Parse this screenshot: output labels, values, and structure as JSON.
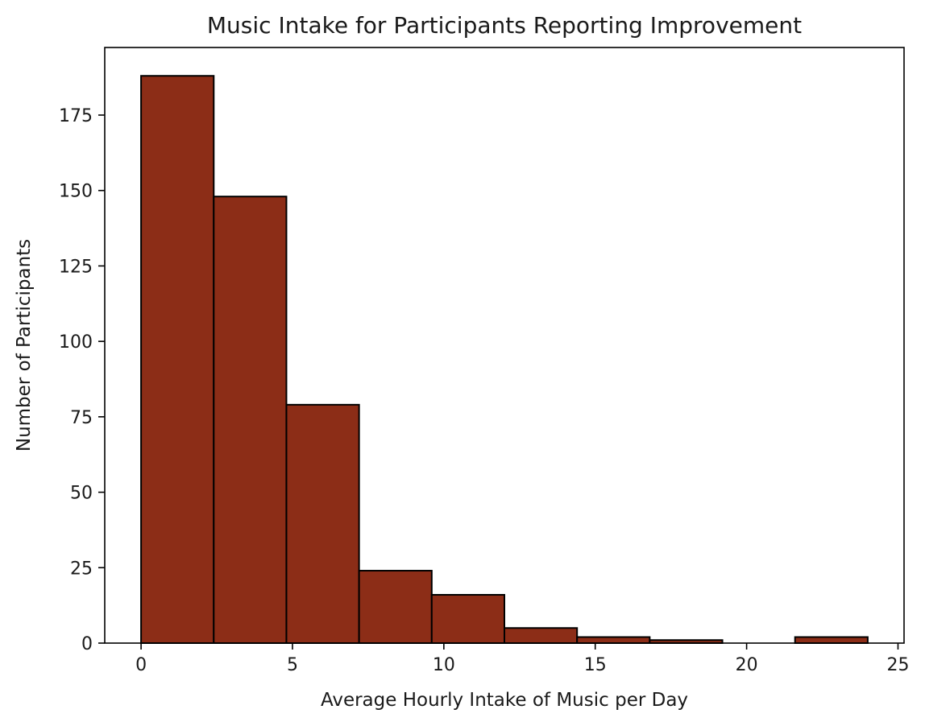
{
  "chart_data": {
    "type": "bar",
    "title": "Music Intake for Participants Reporting Improvement",
    "xlabel": "Average Hourly Intake of Music per Day",
    "ylabel": "Number of Participants",
    "bin_edges": [
      0,
      2.4,
      4.8,
      7.2,
      9.6,
      12,
      14.4,
      16.8,
      19.2,
      21.6,
      24
    ],
    "values": [
      188,
      148,
      79,
      24,
      16,
      5,
      2,
      1,
      0,
      2
    ],
    "xlim": [
      -1.2,
      25.2
    ],
    "ylim": [
      0,
      197.4
    ],
    "xticks": [
      0,
      5,
      10,
      15,
      20,
      25
    ],
    "yticks": [
      0,
      25,
      50,
      75,
      100,
      125,
      150,
      175
    ],
    "grid": false,
    "colors": {
      "bar_fill": "#8c2d17",
      "bar_edge": "#000000"
    }
  }
}
